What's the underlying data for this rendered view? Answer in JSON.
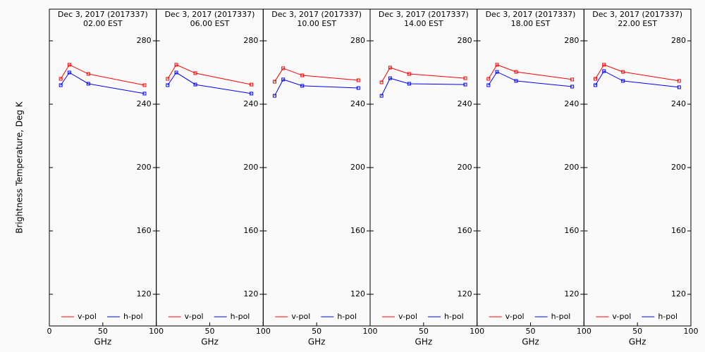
{
  "ylabel": "Brightness Temperature, Deg K",
  "chart_data": [
    {
      "type": "line",
      "title": "Dec  3, 2017 (2017337)",
      "subtitle": "02.00 EST",
      "xlabel": "GHz",
      "x": [
        10.65,
        18.7,
        36.5,
        89
      ],
      "xlim": [
        0,
        100
      ],
      "xticks": [
        0,
        50,
        100
      ],
      "ylim": [
        100,
        300
      ],
      "yticks": [
        120,
        160,
        200,
        240,
        280
      ],
      "series": [
        {
          "name": "v-pol",
          "color": "#ff0000",
          "values": [
            256,
            264.9,
            259.1,
            252
          ]
        },
        {
          "name": "h-pol",
          "color": "#0000ff",
          "values": [
            252,
            260,
            252.9,
            246.7
          ]
        }
      ]
    },
    {
      "type": "line",
      "title": "Dec  3, 2017 (2017337)",
      "subtitle": "06.00 EST",
      "xlabel": "GHz",
      "x": [
        10.65,
        18.7,
        36.5,
        89
      ],
      "xlim": [
        0,
        100
      ],
      "xticks": [
        50,
        100
      ],
      "ylim": [
        100,
        300
      ],
      "yticks": [
        120,
        160,
        200,
        240,
        280
      ],
      "series": [
        {
          "name": "v-pol",
          "color": "#ff0000",
          "values": [
            256,
            264.9,
            259.6,
            252.4
          ]
        },
        {
          "name": "h-pol",
          "color": "#0000ff",
          "values": [
            252,
            260,
            252.4,
            246.7
          ]
        }
      ]
    },
    {
      "type": "line",
      "title": "Dec  3, 2017 (2017337)",
      "subtitle": "10.00 EST",
      "xlabel": "GHz",
      "x": [
        10.65,
        18.7,
        36.5,
        89
      ],
      "xlim": [
        0,
        100
      ],
      "xticks": [
        50,
        100
      ],
      "ylim": [
        100,
        300
      ],
      "yticks": [
        120,
        160,
        200,
        240,
        280
      ],
      "series": [
        {
          "name": "v-pol",
          "color": "#ff0000",
          "values": [
            254.2,
            262.7,
            258.2,
            255.1
          ]
        },
        {
          "name": "h-pol",
          "color": "#0000ff",
          "values": [
            245.3,
            255.6,
            251.6,
            250.2
          ]
        }
      ]
    },
    {
      "type": "line",
      "title": "Dec  3, 2017 (2017337)",
      "subtitle": "14.00 EST",
      "xlabel": "GHz",
      "x": [
        10.65,
        18.7,
        36.5,
        89
      ],
      "xlim": [
        0,
        100
      ],
      "xticks": [
        50,
        100
      ],
      "ylim": [
        100,
        300
      ],
      "yticks": [
        120,
        160,
        200,
        240,
        280
      ],
      "series": [
        {
          "name": "v-pol",
          "color": "#ff0000",
          "values": [
            253.8,
            263.1,
            259.1,
            256.4
          ]
        },
        {
          "name": "h-pol",
          "color": "#0000ff",
          "values": [
            245.3,
            256.4,
            252.9,
            252.4
          ]
        }
      ]
    },
    {
      "type": "line",
      "title": "Dec  3, 2017 (2017337)",
      "subtitle": "18.00 EST",
      "xlabel": "GHz",
      "x": [
        10.65,
        18.7,
        36.5,
        89
      ],
      "xlim": [
        0,
        100
      ],
      "xticks": [
        50,
        100
      ],
      "ylim": [
        100,
        300
      ],
      "yticks": [
        120,
        160,
        200,
        240,
        280
      ],
      "series": [
        {
          "name": "v-pol",
          "color": "#ff0000",
          "values": [
            256,
            264.9,
            260.4,
            255.6
          ]
        },
        {
          "name": "h-pol",
          "color": "#0000ff",
          "values": [
            252,
            260.4,
            254.7,
            251.1
          ]
        }
      ]
    },
    {
      "type": "line",
      "title": "Dec  3, 2017 (2017337)",
      "subtitle": "22.00 EST",
      "xlabel": "GHz",
      "x": [
        10.65,
        18.7,
        36.5,
        89
      ],
      "xlim": [
        0,
        100
      ],
      "xticks": [
        50,
        100
      ],
      "ylim": [
        100,
        300
      ],
      "yticks": [
        120,
        160,
        200,
        240,
        280
      ],
      "series": [
        {
          "name": "v-pol",
          "color": "#ff0000",
          "values": [
            256,
            264.9,
            260.4,
            254.7
          ]
        },
        {
          "name": "h-pol",
          "color": "#0000ff",
          "values": [
            252,
            260.9,
            254.7,
            250.7
          ]
        }
      ]
    }
  ]
}
